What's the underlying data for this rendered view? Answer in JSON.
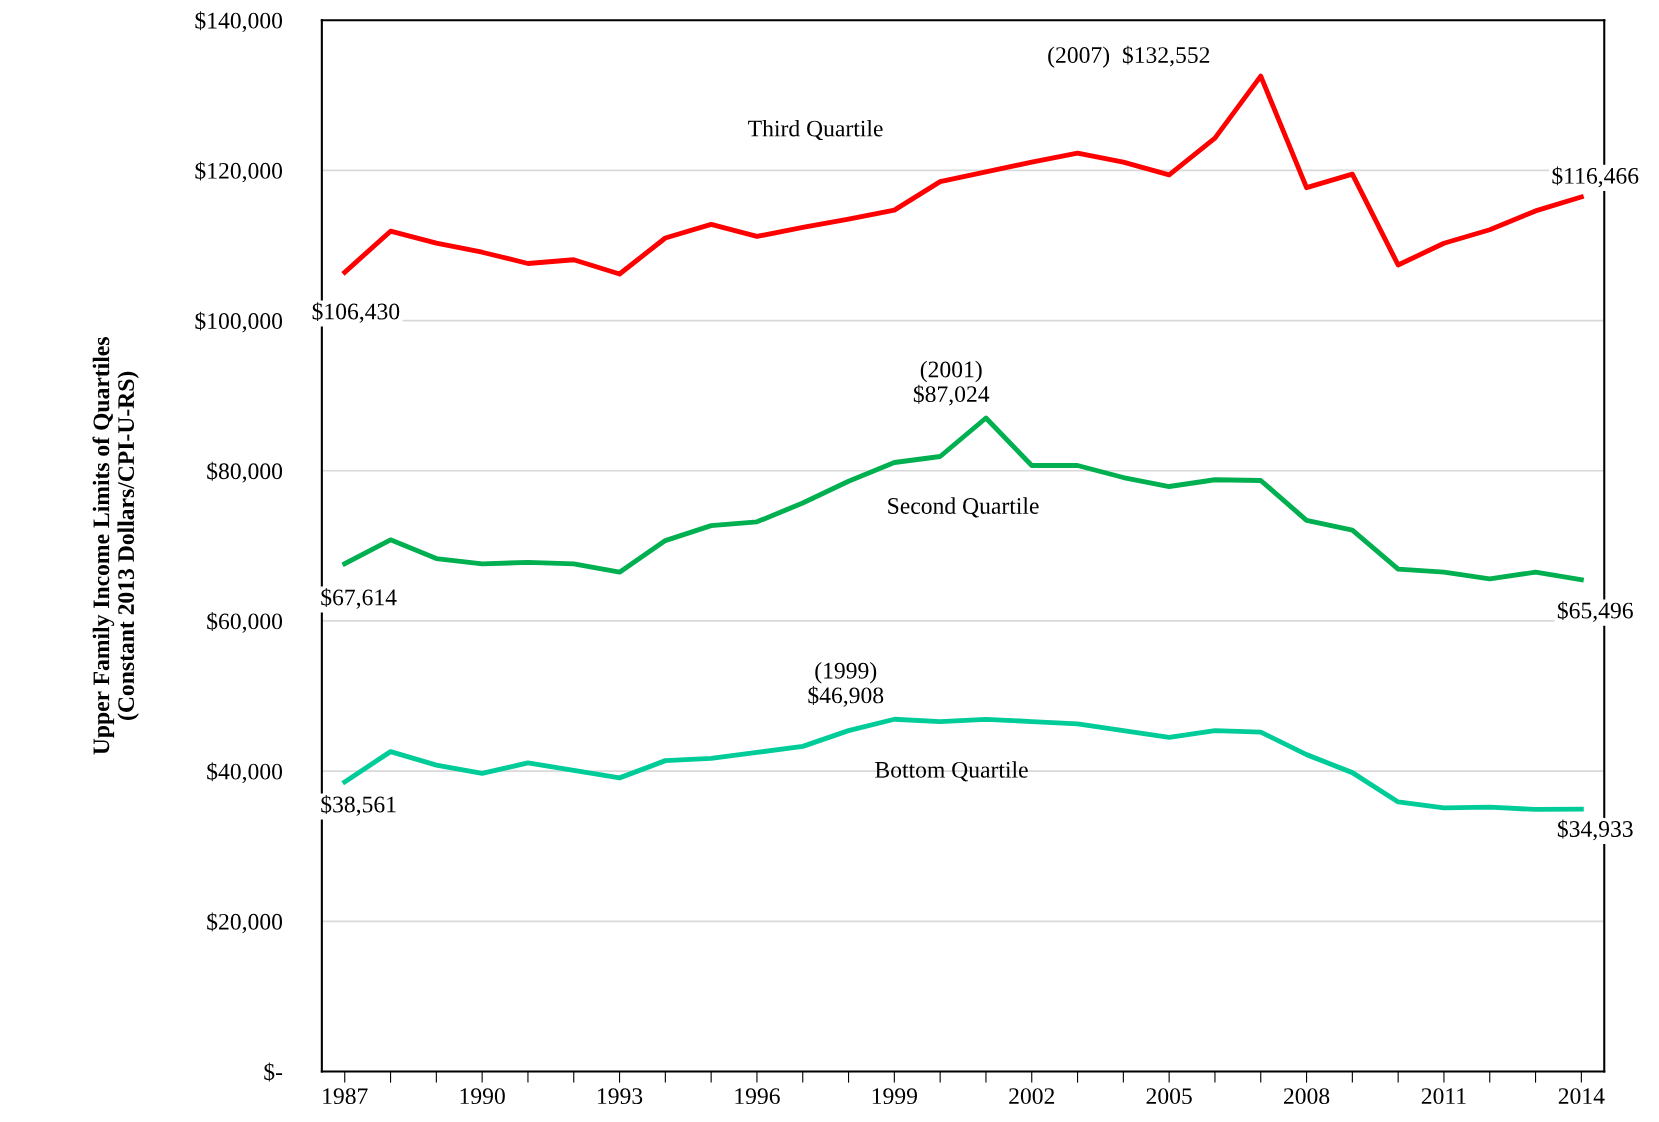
{
  "chart_data": {
    "type": "line",
    "ylabel": "Upper Family Income Limits of Quartiles\n(Constant 2013 Dollars/CPI-U-RS)",
    "x": [
      1987,
      1988,
      1989,
      1990,
      1991,
      1992,
      1993,
      1994,
      1995,
      1996,
      1997,
      1998,
      1999,
      2000,
      2001,
      2002,
      2003,
      2004,
      2005,
      2006,
      2007,
      2008,
      2009,
      2010,
      2011,
      2012,
      2013,
      2014
    ],
    "series": [
      {
        "name": "Third Quartile",
        "color": "#ff0000",
        "values": [
          106430,
          111900,
          110300,
          109100,
          107600,
          108100,
          106200,
          111000,
          112800,
          111200,
          112400,
          113500,
          114700,
          118500,
          119800,
          121100,
          122300,
          121100,
          119400,
          124300,
          132552,
          117700,
          119500,
          107400,
          110300,
          112100,
          114600,
          116466
        ]
      },
      {
        "name": "Second Quartile",
        "color": "#00b050",
        "values": [
          67614,
          70800,
          68300,
          67600,
          67800,
          67600,
          66500,
          70700,
          72700,
          73200,
          75700,
          78600,
          81100,
          81900,
          87024,
          80700,
          80700,
          79100,
          77900,
          78800,
          78700,
          73400,
          72100,
          66900,
          66500,
          65600,
          66500,
          65496
        ]
      },
      {
        "name": "Bottom Quartile",
        "color": "#00cc99",
        "values": [
          38561,
          42600,
          40800,
          39700,
          41100,
          40100,
          39100,
          41400,
          41700,
          42500,
          43300,
          45400,
          46908,
          46600,
          46900,
          46600,
          46300,
          45400,
          44500,
          45400,
          45200,
          42200,
          39800,
          35900,
          35100,
          35200,
          34900,
          34933
        ]
      }
    ],
    "annotations": [
      {
        "text": "$106,430",
        "x": 1987,
        "y": 106430
      },
      {
        "text": "(2007)  $132,552",
        "x": 2007,
        "y": 132552
      },
      {
        "text": "$116,466",
        "x": 2014,
        "y": 116466
      },
      {
        "text": "$67,614",
        "x": 1987,
        "y": 67614
      },
      {
        "text": "(2001)\n$87,024",
        "x": 2001,
        "y": 87024
      },
      {
        "text": "$65,496",
        "x": 2014,
        "y": 65496
      },
      {
        "text": "$38,561",
        "x": 1987,
        "y": 38561
      },
      {
        "text": "(1999)\n$46,908",
        "x": 1999,
        "y": 46908
      },
      {
        "text": "$34,933",
        "x": 2014,
        "y": 34933
      }
    ],
    "xlim": [
      1986.5,
      2014.5
    ],
    "xticks": [
      1987,
      {
        "value": 1988,
        "label": null
      },
      {
        "value": 1989,
        "label": null
      },
      1990,
      {
        "value": 1991,
        "label": null
      },
      {
        "value": 1992,
        "label": null
      },
      1993,
      {
        "value": 1994,
        "label": null
      },
      {
        "value": 1995,
        "label": null
      },
      1996,
      {
        "value": 1997,
        "label": null
      },
      {
        "value": 1998,
        "label": null
      },
      1999,
      {
        "value": 2000,
        "label": null
      },
      {
        "value": 2001,
        "label": null
      },
      2002,
      {
        "value": 2003,
        "label": null
      },
      {
        "value": 2004,
        "label": null
      },
      2005,
      {
        "value": 2006,
        "label": null
      },
      {
        "value": 2007,
        "label": null
      },
      2008,
      {
        "value": 2009,
        "label": null
      },
      {
        "value": 2010,
        "label": null
      },
      2011,
      {
        "value": 2012,
        "label": null
      },
      {
        "value": 2013,
        "label": null
      },
      2014
    ],
    "ylim": [
      0,
      140000
    ],
    "yticks": [
      {
        "value": 0,
        "label": "$-"
      },
      {
        "value": 20000,
        "label": "$20,000"
      },
      {
        "value": 40000,
        "label": "$40,000"
      },
      {
        "value": 60000,
        "label": "$60,000"
      },
      {
        "value": 80000,
        "label": "$80,000"
      },
      {
        "value": 100000,
        "label": "$100,000"
      },
      {
        "value": 120000,
        "label": "$120,000"
      },
      {
        "value": 140000,
        "label": "$140,000"
      }
    ],
    "grid": "y",
    "marker": "none",
    "line_style": "solid",
    "legend": false
  }
}
